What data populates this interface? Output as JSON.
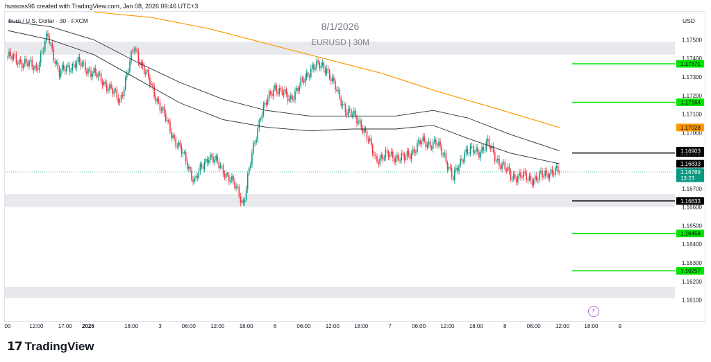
{
  "header": {
    "creator_line": "hussoss96 created with TradingView.com, Jan 08, 2026 09:46 UTC+3"
  },
  "legend": {
    "symbol_line": "Euro / U.S. Dollar · 30 · FXCM",
    "date_watermark": "8/1/2026",
    "symbol_watermark": "EURUSD | 30M",
    "currency": "USD"
  },
  "footer": {
    "logo_text": "TradingView",
    "logo_mark": "17"
  },
  "colors": {
    "up_candle": "#089981",
    "down_candle": "#f23645",
    "zone": "#e8e9ec",
    "ema_orange": "#ff9800",
    "channel": "#2a2e39",
    "level_green": "#00e600",
    "level_black": "#000000",
    "current_price_bg": "#089981",
    "orange_label_bg": "#ff9800"
  },
  "chart_data": {
    "type": "candlestick",
    "instrument": "EURUSD",
    "timeframe": "30M",
    "ylim": [
      1.16035,
      1.17635
    ],
    "price_ticks": [
      1.175,
      1.174,
      1.173,
      1.172,
      1.171,
      1.17,
      1.169,
      1.168,
      1.167,
      1.166,
      1.165,
      1.164,
      1.163,
      1.162,
      1.161
    ],
    "price_tick_labels": [
      "1.17500",
      "1.17400",
      "1.17300",
      "1.17200",
      "1.17100",
      "1.17000",
      "1.16900",
      "1.16800",
      "1.16700",
      "1.16600",
      "1.16500",
      "1.16400",
      "1.16300",
      "1.16200",
      "1.16100"
    ],
    "time_labels": [
      "00",
      "12:00",
      "17:00",
      "2026",
      "18:00",
      "3",
      "06:00",
      "12:00",
      "18:00",
      "6",
      "06:00",
      "12:00",
      "18:00",
      "7",
      "06:00",
      "12:00",
      "18:00",
      "8",
      "06:00",
      "12:00",
      "18:00",
      "9"
    ],
    "time_label_bars": [
      0,
      20,
      40,
      56,
      86,
      106,
      126,
      146,
      166,
      186,
      206,
      226,
      246,
      266,
      286,
      306,
      326,
      346,
      366,
      386,
      406,
      426
    ],
    "zones": [
      {
        "from": 1.1742,
        "to": 1.1749
      },
      {
        "from": 1.166,
        "to": 1.1667
      },
      {
        "from": 1.1611,
        "to": 1.1617
      }
    ],
    "levels": [
      {
        "price": 1.17371,
        "label": "1.17371",
        "style": "green"
      },
      {
        "price": 1.17164,
        "label": "1.17164",
        "style": "green"
      },
      {
        "price": 1.16891,
        "label": "1.16891",
        "style": "black"
      },
      {
        "price": 1.16633,
        "label": "1.16633",
        "style": "black"
      },
      {
        "price": 1.16458,
        "label": "1.16458",
        "style": "green"
      },
      {
        "price": 1.16257,
        "label": "1.16257",
        "style": "green"
      }
    ],
    "price_labels": [
      {
        "price": 1.17028,
        "label": "1.17028",
        "style": "orange"
      },
      {
        "price": 1.16903,
        "label": "1.16903",
        "style": "black"
      },
      {
        "price": 1.16833,
        "label": "1.16833",
        "style": "black"
      }
    ],
    "current_price": {
      "price": 1.16789,
      "label": "1.16789",
      "countdown": "13:23"
    },
    "key_closes": [
      {
        "bar": 0,
        "close": 1.1741
      },
      {
        "bar": 10,
        "close": 1.1738
      },
      {
        "bar": 20,
        "close": 1.1735
      },
      {
        "bar": 28,
        "close": 1.1752
      },
      {
        "bar": 36,
        "close": 1.1732
      },
      {
        "bar": 48,
        "close": 1.1738
      },
      {
        "bar": 60,
        "close": 1.1732
      },
      {
        "bar": 70,
        "close": 1.1725
      },
      {
        "bar": 78,
        "close": 1.1717
      },
      {
        "bar": 88,
        "close": 1.1746
      },
      {
        "bar": 96,
        "close": 1.1732
      },
      {
        "bar": 104,
        "close": 1.1718
      },
      {
        "bar": 114,
        "close": 1.17
      },
      {
        "bar": 124,
        "close": 1.1685
      },
      {
        "bar": 130,
        "close": 1.1674
      },
      {
        "bar": 140,
        "close": 1.1688
      },
      {
        "bar": 150,
        "close": 1.168
      },
      {
        "bar": 160,
        "close": 1.1669
      },
      {
        "bar": 164,
        "close": 1.1662
      },
      {
        "bar": 170,
        "close": 1.1688
      },
      {
        "bar": 176,
        "close": 1.171
      },
      {
        "bar": 186,
        "close": 1.1725
      },
      {
        "bar": 196,
        "close": 1.1718
      },
      {
        "bar": 206,
        "close": 1.1728
      },
      {
        "bar": 212,
        "close": 1.1736
      },
      {
        "bar": 222,
        "close": 1.1735
      },
      {
        "bar": 230,
        "close": 1.172
      },
      {
        "bar": 236,
        "close": 1.1712
      },
      {
        "bar": 246,
        "close": 1.1705
      },
      {
        "bar": 256,
        "close": 1.1686
      },
      {
        "bar": 266,
        "close": 1.1688
      },
      {
        "bar": 276,
        "close": 1.1686
      },
      {
        "bar": 288,
        "close": 1.1695
      },
      {
        "bar": 298,
        "close": 1.1694
      },
      {
        "bar": 304,
        "close": 1.1688
      },
      {
        "bar": 310,
        "close": 1.1675
      },
      {
        "bar": 318,
        "close": 1.169
      },
      {
        "bar": 328,
        "close": 1.169
      },
      {
        "bar": 334,
        "close": 1.1694
      },
      {
        "bar": 342,
        "close": 1.1684
      },
      {
        "bar": 350,
        "close": 1.1677
      },
      {
        "bar": 360,
        "close": 1.1676
      },
      {
        "bar": 368,
        "close": 1.1675
      },
      {
        "bar": 376,
        "close": 1.1679
      },
      {
        "bar": 384,
        "close": 1.1679
      }
    ],
    "ema_orange": [
      {
        "bar": 60,
        "value": 1.1765
      },
      {
        "bar": 100,
        "value": 1.1762
      },
      {
        "bar": 140,
        "value": 1.1756
      },
      {
        "bar": 180,
        "value": 1.1748
      },
      {
        "bar": 220,
        "value": 1.174
      },
      {
        "bar": 260,
        "value": 1.1732
      },
      {
        "bar": 300,
        "value": 1.1722
      },
      {
        "bar": 340,
        "value": 1.1713
      },
      {
        "bar": 384,
        "value": 1.17028
      }
    ],
    "channel_upper": [
      {
        "bar": 0,
        "value": 1.176
      },
      {
        "bar": 30,
        "value": 1.1757
      },
      {
        "bar": 60,
        "value": 1.175
      },
      {
        "bar": 90,
        "value": 1.1738
      },
      {
        "bar": 120,
        "value": 1.1727
      },
      {
        "bar": 150,
        "value": 1.1718
      },
      {
        "bar": 180,
        "value": 1.1712
      },
      {
        "bar": 210,
        "value": 1.1709
      },
      {
        "bar": 240,
        "value": 1.1709
      },
      {
        "bar": 270,
        "value": 1.1709
      },
      {
        "bar": 296,
        "value": 1.1712
      },
      {
        "bar": 320,
        "value": 1.1708
      },
      {
        "bar": 350,
        "value": 1.1699
      },
      {
        "bar": 384,
        "value": 1.16903
      }
    ],
    "channel_lower": [
      {
        "bar": 0,
        "value": 1.1755
      },
      {
        "bar": 30,
        "value": 1.175
      },
      {
        "bar": 60,
        "value": 1.1742
      },
      {
        "bar": 90,
        "value": 1.1729
      },
      {
        "bar": 120,
        "value": 1.1716
      },
      {
        "bar": 150,
        "value": 1.1707
      },
      {
        "bar": 180,
        "value": 1.1703
      },
      {
        "bar": 210,
        "value": 1.1701
      },
      {
        "bar": 240,
        "value": 1.1702
      },
      {
        "bar": 270,
        "value": 1.1702
      },
      {
        "bar": 296,
        "value": 1.1704
      },
      {
        "bar": 320,
        "value": 1.1697
      },
      {
        "bar": 350,
        "value": 1.1689
      },
      {
        "bar": 384,
        "value": 1.16833
      }
    ],
    "total_bars": 436
  }
}
